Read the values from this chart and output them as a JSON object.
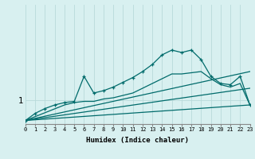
{
  "title": "",
  "xlabel": "Humidex (Indice chaleur)",
  "background_color": "#d8f0f0",
  "line_color": "#006b6b",
  "x_min": 0,
  "x_max": 23,
  "y_min": 0,
  "y_max": 5,
  "ytick_val": 1.0,
  "ytick_label": "1",
  "grid_color": "#b8dada",
  "line1_x": [
    0,
    1,
    2,
    3,
    4,
    5,
    6,
    7,
    8,
    9,
    10,
    11,
    12,
    13,
    14,
    15,
    16,
    17,
    18,
    19,
    20,
    21,
    22,
    23
  ],
  "line1_y": [
    0.15,
    0.45,
    0.65,
    0.8,
    0.9,
    0.95,
    2.0,
    1.3,
    1.4,
    1.55,
    1.75,
    1.95,
    2.2,
    2.5,
    2.9,
    3.1,
    3.0,
    3.1,
    2.7,
    2.0,
    1.7,
    1.65,
    2.0,
    0.8
  ],
  "line2_x": [
    0,
    4,
    5,
    6,
    7,
    8,
    9,
    10,
    11,
    12,
    13,
    14,
    15,
    16,
    17,
    18,
    19,
    20,
    21,
    22,
    23
  ],
  "line2_y": [
    0.15,
    0.8,
    0.9,
    0.95,
    0.95,
    1.05,
    1.1,
    1.2,
    1.3,
    1.5,
    1.7,
    1.9,
    2.1,
    2.1,
    2.15,
    2.2,
    1.9,
    1.65,
    1.55,
    1.7,
    0.8
  ],
  "line3_x": [
    0,
    23
  ],
  "line3_y": [
    0.15,
    2.2
  ],
  "line4_x": [
    0,
    23
  ],
  "line4_y": [
    0.15,
    1.5
  ],
  "line5_x": [
    0,
    23
  ],
  "line5_y": [
    0.15,
    0.8
  ]
}
